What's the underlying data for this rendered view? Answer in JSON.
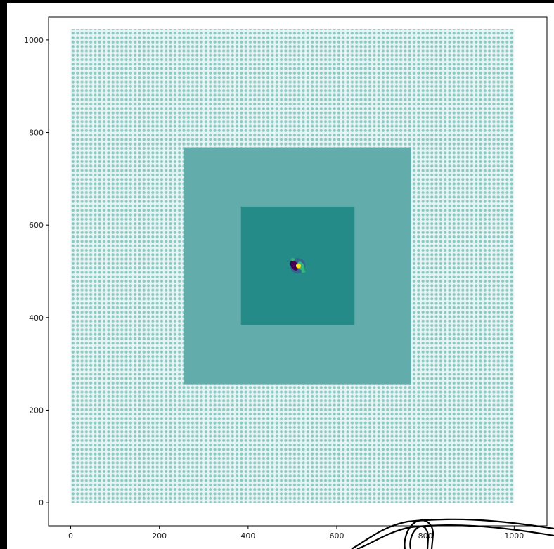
{
  "chart_data": {
    "type": "scatter",
    "title": "",
    "xlabel": "",
    "ylabel": "",
    "xlim": [
      -50,
      1074
    ],
    "ylim": [
      -50,
      1050
    ],
    "xticks": [
      0,
      200,
      400,
      600,
      800,
      1000
    ],
    "xtick_labels": [
      "0",
      "200",
      "400",
      "600",
      "800",
      "1000"
    ],
    "yticks": [
      0,
      200,
      400,
      600,
      800,
      1000
    ],
    "ytick_labels": [
      "0",
      "200",
      "400",
      "600",
      "800",
      "1000"
    ],
    "grid": false,
    "regions": [
      {
        "name": "outer grid",
        "x": [
          0,
          1000
        ],
        "y": [
          0,
          1024
        ],
        "style": "dense dotted points",
        "color": "#8cc9c5"
      },
      {
        "name": "middle square",
        "x": [
          256,
          768
        ],
        "y": [
          256,
          768
        ],
        "color": "#62adab"
      },
      {
        "name": "inner square",
        "x": [
          384,
          640
        ],
        "y": [
          384,
          640
        ],
        "color": "#258b89"
      }
    ],
    "feature": {
      "name": "central pattern",
      "x": 512,
      "y": 512,
      "colors": [
        "#440154",
        "#35b779",
        "#fde725",
        "#31688e"
      ]
    }
  },
  "colors": {
    "background": "#000000",
    "figure": "#ffffff",
    "axis": "#000000"
  }
}
